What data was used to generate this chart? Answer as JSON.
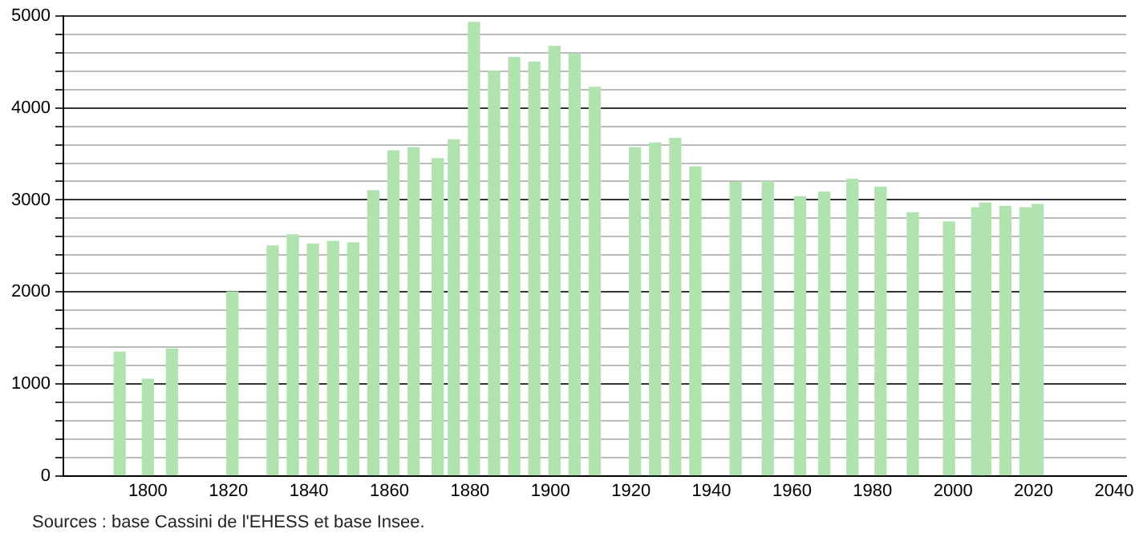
{
  "chart_data": {
    "type": "bar",
    "x": [
      1793,
      1800,
      1806,
      1821,
      1831,
      1836,
      1841,
      1846,
      1851,
      1856,
      1861,
      1866,
      1872,
      1876,
      1881,
      1886,
      1891,
      1896,
      1901,
      1906,
      1911,
      1921,
      1926,
      1931,
      1936,
      1946,
      1954,
      1962,
      1968,
      1975,
      1982,
      1990,
      1999,
      2006,
      2008,
      2013,
      2018,
      2021
    ],
    "values": [
      1345,
      1050,
      1380,
      2000,
      2500,
      2620,
      2520,
      2550,
      2535,
      3100,
      3535,
      3570,
      3450,
      3655,
      4930,
      4400,
      4550,
      4500,
      4670,
      4590,
      4225,
      3570,
      3620,
      3670,
      3360,
      3190,
      3200,
      3035,
      3085,
      3225,
      3140,
      2860,
      2760,
      2915,
      2965,
      2930,
      2915,
      2950
    ],
    "color": "#b0e3b0",
    "xlim": [
      1779,
      2043
    ],
    "xticks": [
      1800,
      1820,
      1840,
      1860,
      1880,
      1900,
      1920,
      1940,
      1960,
      1980,
      2000,
      2020,
      2040
    ],
    "ylim": [
      0,
      5000
    ],
    "yticks": [
      0,
      {
        "value": 200,
        "label": null
      },
      {
        "value": 400,
        "label": null
      },
      {
        "value": 600,
        "label": null
      },
      {
        "value": 800,
        "label": null
      },
      1000,
      {
        "value": 1200,
        "label": null
      },
      {
        "value": 1400,
        "label": null
      },
      {
        "value": 1600,
        "label": null
      },
      {
        "value": 1800,
        "label": null
      },
      2000,
      {
        "value": 2200,
        "label": null
      },
      {
        "value": 2400,
        "label": null
      },
      {
        "value": 2600,
        "label": null
      },
      {
        "value": 2800,
        "label": null
      },
      3000,
      {
        "value": 3200,
        "label": null
      },
      {
        "value": 3400,
        "label": null
      },
      {
        "value": 3600,
        "label": null
      },
      {
        "value": 3800,
        "label": null
      },
      4000,
      {
        "value": 4200,
        "label": null
      },
      {
        "value": 4400,
        "label": null
      },
      {
        "value": 4600,
        "label": null
      },
      {
        "value": 4800,
        "label": null
      },
      5000
    ],
    "grid": "y",
    "annotations": [
      "Sources : base Cassini de l'EHESS et base Insee."
    ]
  }
}
